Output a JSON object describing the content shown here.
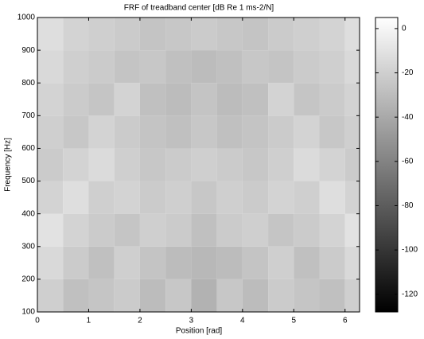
{
  "chart_data": {
    "type": "heatmap",
    "title": "FRF of treadband center [dB Re 1 ms-2/N]",
    "x_label": "Position [rad]",
    "y_label": "Frequency [Hz]",
    "x": [
      0.25,
      0.75,
      1.25,
      1.75,
      2.25,
      2.75,
      3.25,
      3.75,
      4.25,
      4.75,
      5.25,
      5.75,
      6.25
    ],
    "y": [
      150,
      250,
      350,
      450,
      550,
      650,
      750,
      850,
      950
    ],
    "z": [
      [
        -20,
        -28,
        -25,
        -22,
        -30,
        -24,
        -35,
        -24,
        -30,
        -22,
        -25,
        -28,
        -20
      ],
      [
        -15,
        -22,
        -28,
        -20,
        -26,
        -30,
        -32,
        -30,
        -26,
        -20,
        -28,
        -22,
        -15
      ],
      [
        -10,
        -18,
        -22,
        -25,
        -20,
        -22,
        -28,
        -22,
        -20,
        -25,
        -22,
        -18,
        -10
      ],
      [
        -18,
        -12,
        -20,
        -18,
        -22,
        -20,
        -24,
        -20,
        -22,
        -18,
        -20,
        -12,
        -18
      ],
      [
        -22,
        -18,
        -14,
        -20,
        -24,
        -22,
        -20,
        -22,
        -24,
        -20,
        -14,
        -18,
        -22
      ],
      [
        -20,
        -24,
        -18,
        -22,
        -26,
        -28,
        -24,
        -28,
        -26,
        -22,
        -18,
        -24,
        -20
      ],
      [
        -18,
        -22,
        -25,
        -18,
        -28,
        -30,
        -26,
        -30,
        -28,
        -18,
        -25,
        -22,
        -18
      ],
      [
        -15,
        -20,
        -22,
        -26,
        -24,
        -28,
        -30,
        -28,
        -24,
        -26,
        -22,
        -20,
        -15
      ],
      [
        -12,
        -18,
        -20,
        -22,
        -26,
        -24,
        -22,
        -24,
        -26,
        -22,
        -20,
        -18,
        -12
      ]
    ],
    "xlim": [
      0,
      6.283
    ],
    "xticks": [
      0,
      1,
      2,
      3,
      4,
      5,
      6
    ],
    "ylim": [
      100,
      1000
    ],
    "yticks": [
      100,
      200,
      300,
      400,
      500,
      600,
      700,
      800,
      900,
      1000
    ],
    "colormap": "gray",
    "clim": [
      -128,
      5
    ],
    "cticks": [
      0,
      -20,
      -40,
      -60,
      -80,
      -100,
      -120
    ]
  }
}
